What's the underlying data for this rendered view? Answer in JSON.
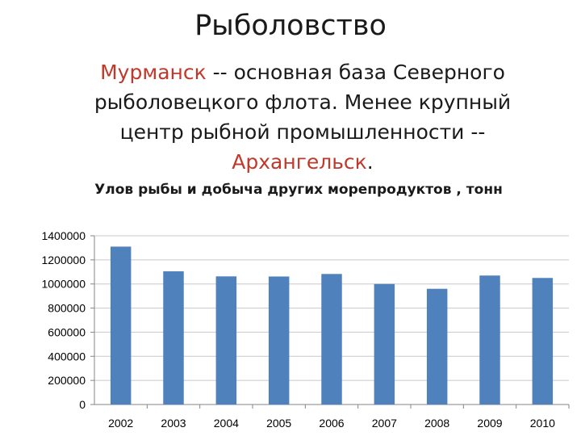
{
  "slide": {
    "title": "Рыболовство",
    "body": {
      "highlight1": "Мурманск",
      "text1": " -- основная база Северного рыболовецкого флота. Менее крупный центр рыбной промышленности --",
      "highlight2": "Архангельск",
      "text2": "."
    }
  },
  "colors": {
    "highlight": "#c0392b",
    "bar": "#4f81bd",
    "axis": "#868686",
    "gridline": "#c8c8c8"
  },
  "chart_data": {
    "type": "bar",
    "title": "Улов рыбы и добыча других морепродуктов , тонн",
    "categories": [
      "2002",
      "2003",
      "2004",
      "2005",
      "2006",
      "2007",
      "2008",
      "2009",
      "2010"
    ],
    "values": [
      1310000,
      1105000,
      1063000,
      1062000,
      1083000,
      1000000,
      960000,
      1070000,
      1050000
    ],
    "ylim": [
      0,
      1400000
    ],
    "yticks": [
      "0",
      "200000",
      "400000",
      "600000",
      "800000",
      "1000000",
      "1200000",
      "1400000"
    ],
    "grid": true,
    "legend": "none"
  }
}
